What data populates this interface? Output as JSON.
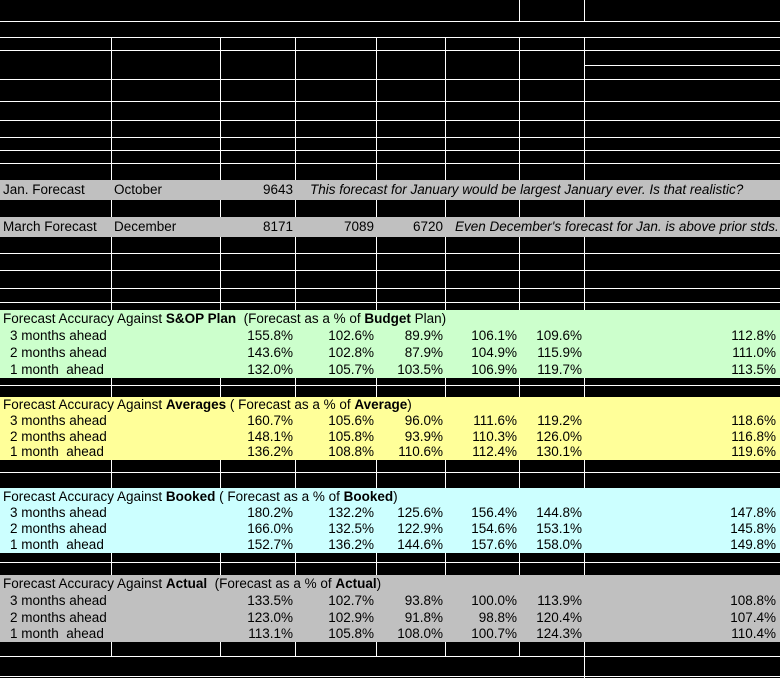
{
  "colors": {
    "background": "#000000",
    "gridline": "#ffffff",
    "gray_row": "#c0c0c0",
    "section_sop": "#ccffcc",
    "section_averages": "#ffff99",
    "section_booked": "#ccffff",
    "section_actual": "#c0c0c0",
    "text": "#000000"
  },
  "forecast_rows": [
    {
      "name": "january-forecast",
      "label": "Jan. Forecast",
      "month": "October",
      "values": [
        "9643"
      ],
      "comment": "This forecast for January would be largest January ever. Is that realistic?"
    },
    {
      "name": "march-forecast",
      "label": "March Forecast",
      "month": "December",
      "values": [
        "8171",
        "7089",
        "6720"
      ],
      "comment": "Even December's forecast for Jan. is above prior stds."
    }
  ],
  "sections": [
    {
      "name": "sop-plan",
      "color": "#ccffcc",
      "title": [
        {
          "text": "Forecast Accuracy Against ",
          "bold": false
        },
        {
          "text": "S&OP Plan",
          "bold": true
        },
        {
          "text": "  (Forecast as a % of ",
          "bold": false
        },
        {
          "text": "Budget",
          "bold": true
        },
        {
          "text": " Plan)",
          "bold": false
        }
      ],
      "rows": [
        {
          "label": "3 months ahead",
          "values": [
            "155.8%",
            "102.6%",
            "89.9%",
            "106.1%",
            "109.6%",
            "112.8%"
          ]
        },
        {
          "label": "2 months ahead",
          "values": [
            "143.6%",
            "102.8%",
            "87.9%",
            "104.9%",
            "115.9%",
            "111.0%"
          ]
        },
        {
          "label": "1 month  ahead",
          "values": [
            "132.0%",
            "105.7%",
            "103.5%",
            "106.9%",
            "119.7%",
            "113.5%"
          ]
        }
      ]
    },
    {
      "name": "averages",
      "color": "#ffff99",
      "title": [
        {
          "text": "Forecast Accuracy Against ",
          "bold": false
        },
        {
          "text": "Averages",
          "bold": true
        },
        {
          "text": " ( Forecast as a % of ",
          "bold": false
        },
        {
          "text": "Average",
          "bold": true
        },
        {
          "text": ")",
          "bold": false
        }
      ],
      "rows": [
        {
          "label": "3 months ahead",
          "values": [
            "160.7%",
            "105.6%",
            "96.0%",
            "111.6%",
            "119.2%",
            "118.6%"
          ]
        },
        {
          "label": "2 months ahead",
          "values": [
            "148.1%",
            "105.8%",
            "93.9%",
            "110.3%",
            "126.0%",
            "116.8%"
          ]
        },
        {
          "label": "1 month  ahead",
          "values": [
            "136.2%",
            "108.8%",
            "110.6%",
            "112.4%",
            "130.1%",
            "119.6%"
          ]
        }
      ]
    },
    {
      "name": "booked",
      "color": "#ccffff",
      "title": [
        {
          "text": "Forecast Accuracy Against ",
          "bold": false
        },
        {
          "text": "Booked",
          "bold": true
        },
        {
          "text": " ( Forecast as a % of ",
          "bold": false
        },
        {
          "text": "Booked",
          "bold": true
        },
        {
          "text": ")",
          "bold": false
        }
      ],
      "rows": [
        {
          "label": "3 months ahead",
          "values": [
            "180.2%",
            "132.2%",
            "125.6%",
            "156.4%",
            "144.8%",
            "147.8%"
          ]
        },
        {
          "label": "2 months ahead",
          "values": [
            "166.0%",
            "132.5%",
            "122.9%",
            "154.6%",
            "153.1%",
            "145.8%"
          ]
        },
        {
          "label": "1 month  ahead",
          "values": [
            "152.7%",
            "136.2%",
            "144.6%",
            "157.6%",
            "158.0%",
            "149.8%"
          ]
        }
      ]
    },
    {
      "name": "actual",
      "color": "#c0c0c0",
      "title": [
        {
          "text": "Forecast Accuracy Against ",
          "bold": false
        },
        {
          "text": "Actual",
          "bold": true
        },
        {
          "text": "  (Forecast as a % of ",
          "bold": false
        },
        {
          "text": "Actual",
          "bold": true
        },
        {
          "text": ")",
          "bold": false
        }
      ],
      "rows": [
        {
          "label": "3 months ahead",
          "values": [
            "133.5%",
            "102.7%",
            "93.8%",
            "100.0%",
            "113.9%",
            "108.8%"
          ]
        },
        {
          "label": "2 months ahead",
          "values": [
            "123.0%",
            "102.9%",
            "91.8%",
            "98.8%",
            "120.4%",
            "107.4%"
          ]
        },
        {
          "label": "1 month  ahead",
          "values": [
            "113.1%",
            "105.8%",
            "108.0%",
            "100.7%",
            "124.3%",
            "110.4%"
          ]
        }
      ]
    }
  ]
}
